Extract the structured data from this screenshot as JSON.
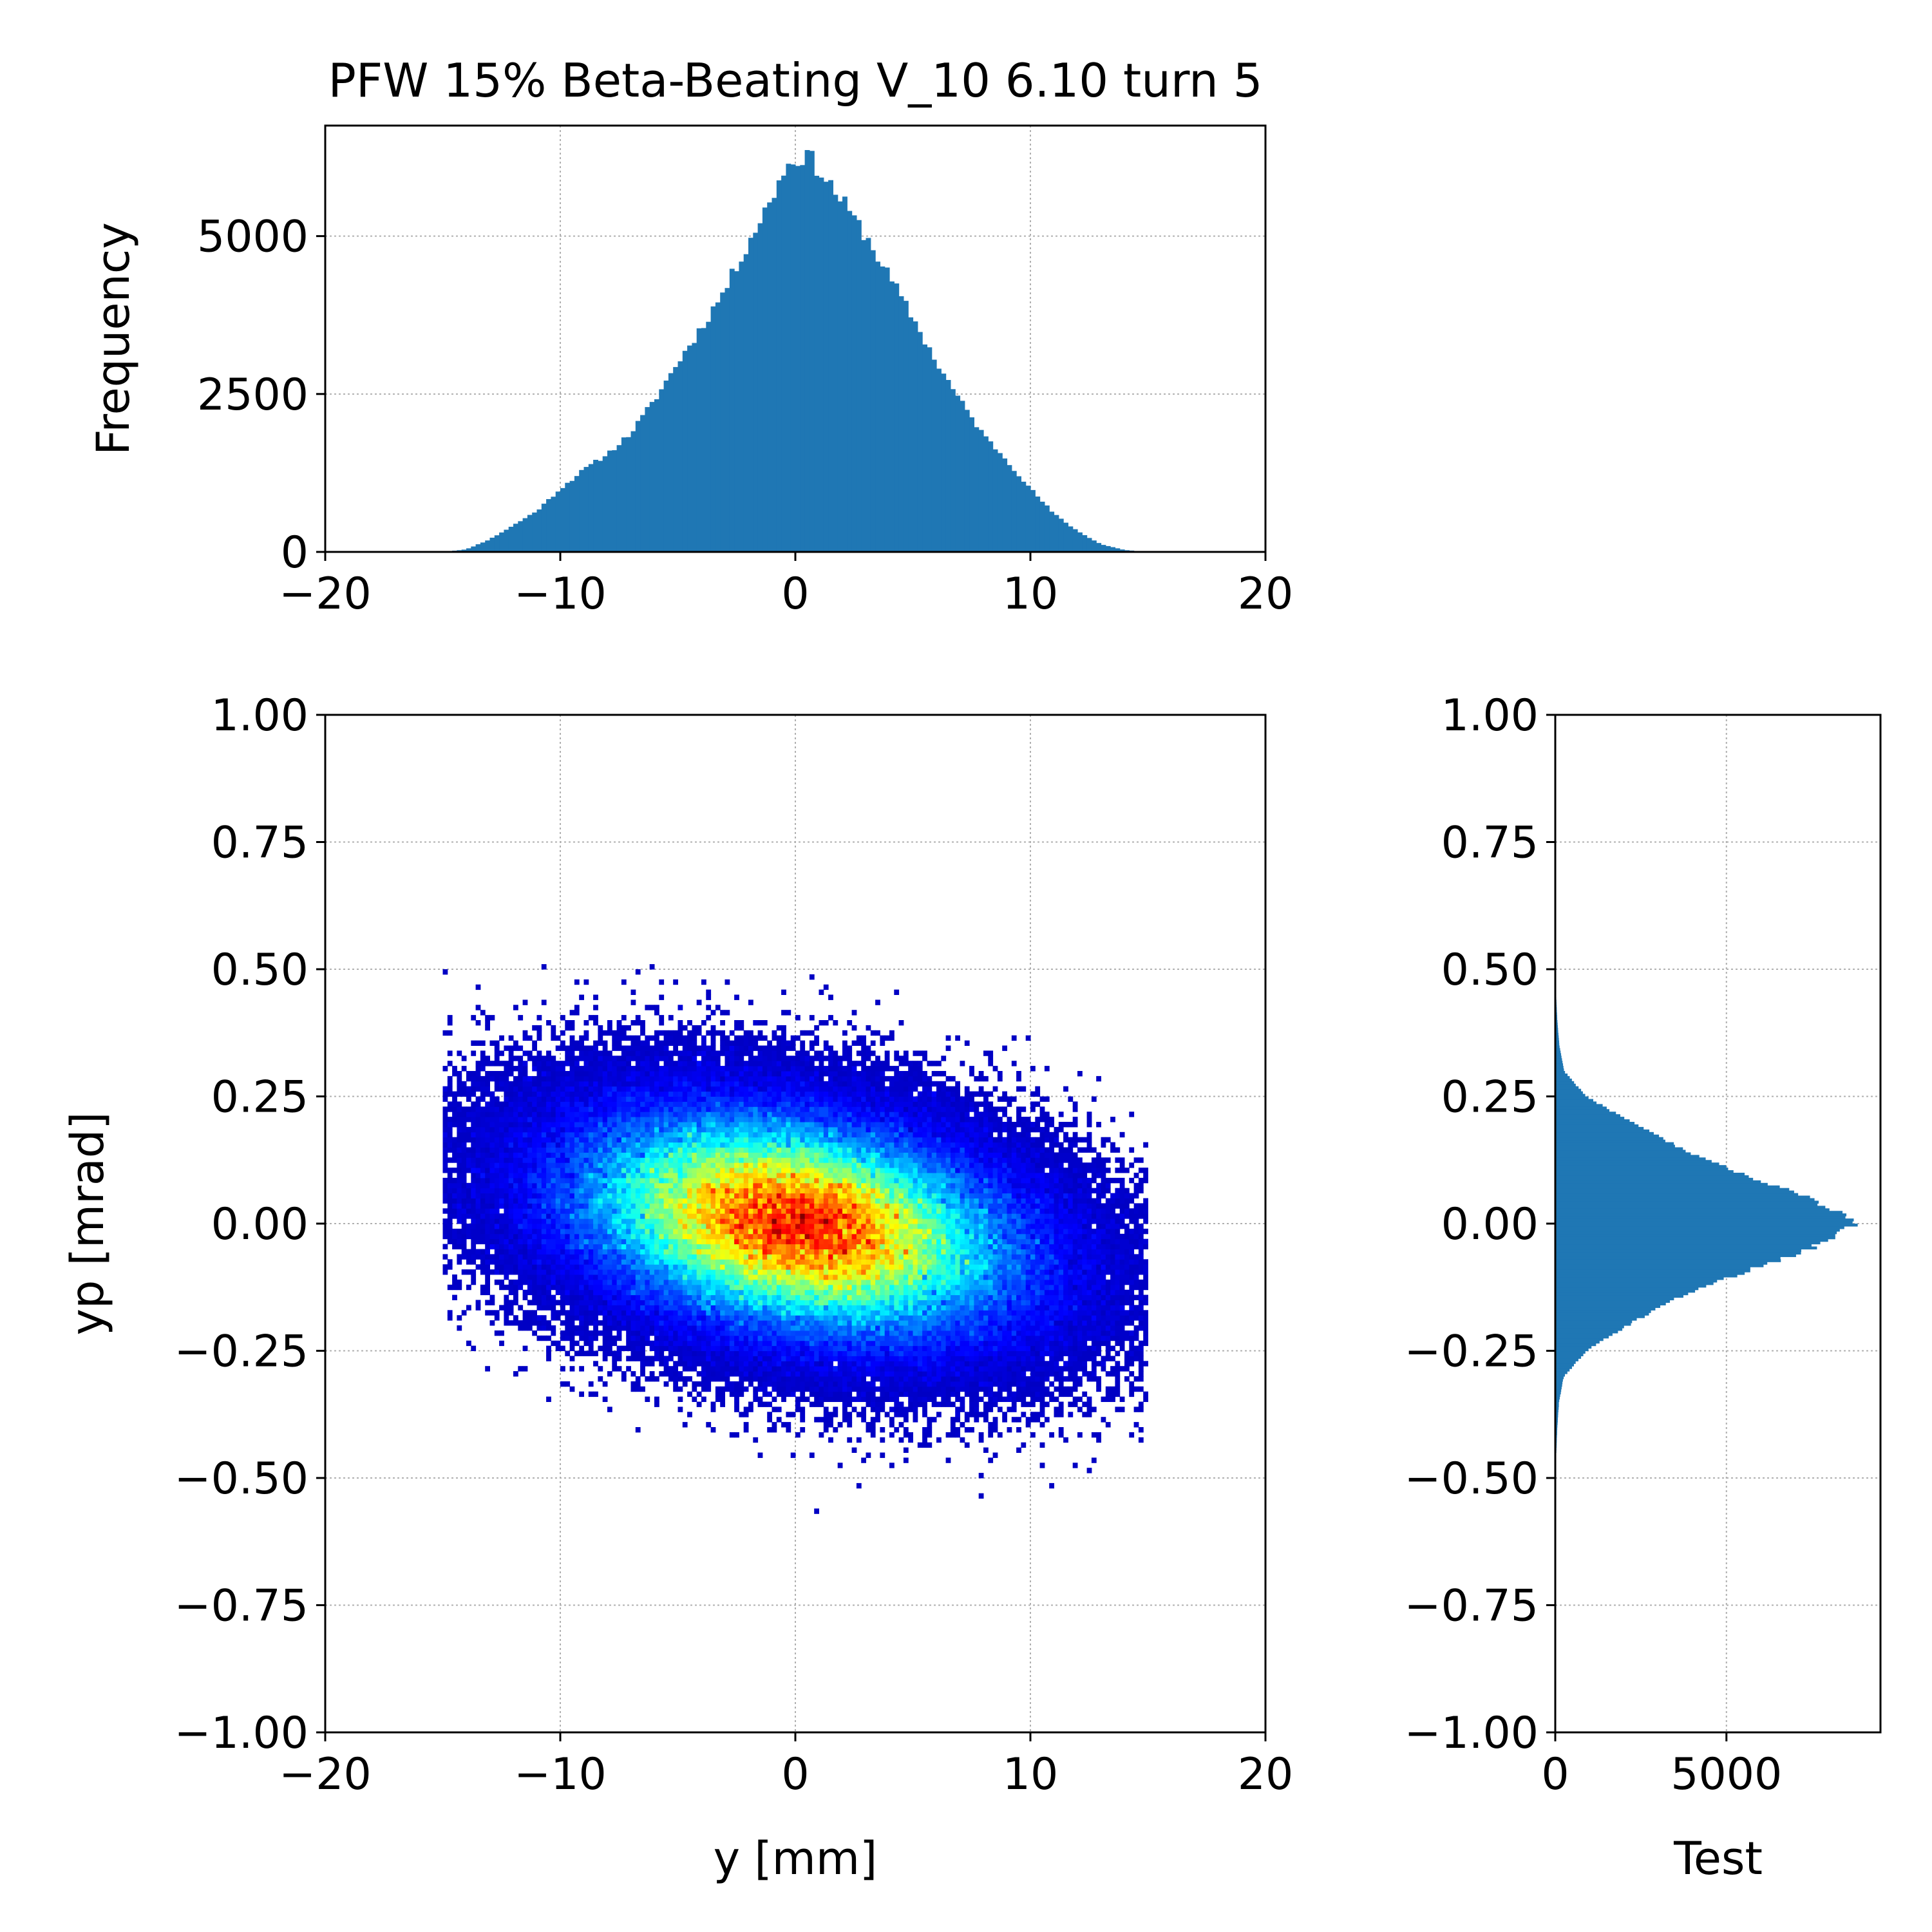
{
  "figure_title": "PFW 15% Beta-Beating V_10 6.10 turn 5",
  "colors": {
    "hist_fill": "#1f77b4",
    "axis": "#000000",
    "grid": "#b0b0b0",
    "background": "#ffffff"
  },
  "chart_data": [
    {
      "id": "top-histogram",
      "type": "bar",
      "title": "PFW 15% Beta-Beating V_10 6.10 turn 5",
      "xlabel": "",
      "ylabel": "Frequency",
      "xlim": [
        -20,
        20
      ],
      "ylim": [
        0,
        6750
      ],
      "xticks": [
        -20,
        -10,
        0,
        10,
        20
      ],
      "xtick_labels": [
        "−20",
        "−10",
        "0",
        "10",
        "20"
      ],
      "yticks": [
        0,
        2500,
        5000
      ],
      "ytick_labels": [
        "0",
        "2500",
        "5000"
      ],
      "grid": true,
      "bin_width": 0.2,
      "profile_points": [
        [
          -15.0,
          0
        ],
        [
          -14.0,
          40
        ],
        [
          -13.0,
          200
        ],
        [
          -12.0,
          420
        ],
        [
          -11.0,
          650
        ],
        [
          -10.0,
          1000
        ],
        [
          -9.0,
          1300
        ],
        [
          -8.0,
          1550
        ],
        [
          -7.0,
          1880
        ],
        [
          -6.0,
          2400
        ],
        [
          -5.0,
          3000
        ],
        [
          -4.0,
          3550
        ],
        [
          -3.0,
          4150
        ],
        [
          -2.0,
          4900
        ],
        [
          -1.0,
          5600
        ],
        [
          -0.5,
          6050
        ],
        [
          0.0,
          6200
        ],
        [
          0.5,
          6300
        ],
        [
          1.0,
          6050
        ],
        [
          2.0,
          5550
        ],
        [
          3.0,
          5000
        ],
        [
          4.0,
          4350
        ],
        [
          5.0,
          3700
        ],
        [
          6.0,
          3000
        ],
        [
          7.0,
          2400
        ],
        [
          8.0,
          1850
        ],
        [
          9.0,
          1450
        ],
        [
          10.0,
          1000
        ],
        [
          11.0,
          600
        ],
        [
          12.0,
          330
        ],
        [
          13.0,
          120
        ],
        [
          14.0,
          30
        ],
        [
          15.0,
          0
        ]
      ]
    },
    {
      "id": "phase-space-heatmap",
      "type": "heatmap",
      "title": "",
      "xlabel": "y [mm]",
      "ylabel": "yp [mrad]",
      "xlim": [
        -20,
        20
      ],
      "ylim": [
        -1.0,
        1.0
      ],
      "xticks": [
        -20,
        -10,
        0,
        10,
        20
      ],
      "xtick_labels": [
        "−20",
        "−10",
        "0",
        "10",
        "20"
      ],
      "yticks": [
        1.0,
        0.75,
        0.5,
        0.25,
        0.0,
        -0.25,
        -0.5,
        -0.75,
        -1.0
      ],
      "ytick_labels": [
        "1.00",
        "0.75",
        "0.50",
        "0.25",
        "0.00",
        "−0.25",
        "−0.50",
        "−0.75",
        "−1.00"
      ],
      "grid": true,
      "colormap": "jet",
      "distribution": {
        "center_y_mm": 0.0,
        "center_yp_mrad": 0.0,
        "sigma_y_mm": 5.2,
        "sigma_yp_mrad": 0.12,
        "correlation": -0.3,
        "extent_y_mm": [
          -15.0,
          15.0
        ],
        "extent_yp_mrad": [
          -0.62,
          0.61
        ]
      }
    },
    {
      "id": "right-histogram",
      "type": "bar",
      "orientation": "horizontal",
      "title": "",
      "xlabel": "Test",
      "ylabel": "",
      "xlim": [
        0,
        9500
      ],
      "ylim": [
        -1.0,
        1.0
      ],
      "xticks": [
        0,
        5000
      ],
      "xtick_labels": [
        "0",
        "5000"
      ],
      "yticks": [
        1.0,
        0.75,
        0.5,
        0.25,
        0.0,
        -0.25,
        -0.5,
        -0.75,
        -1.0
      ],
      "ytick_labels": [
        "1.00",
        "0.75",
        "0.50",
        "0.25",
        "0.00",
        "−0.25",
        "−0.50",
        "−0.75",
        "−1.00"
      ],
      "grid": true,
      "bin_width": 0.005,
      "profile_points": [
        [
          -0.5,
          0
        ],
        [
          -0.45,
          30
        ],
        [
          -0.4,
          60
        ],
        [
          -0.35,
          110
        ],
        [
          -0.3,
          250
        ],
        [
          -0.25,
          900
        ],
        [
          -0.2,
          2100
        ],
        [
          -0.15,
          3400
        ],
        [
          -0.1,
          5300
        ],
        [
          -0.05,
          7400
        ],
        [
          0.0,
          8800
        ],
        [
          0.05,
          7500
        ],
        [
          0.1,
          5400
        ],
        [
          0.15,
          3600
        ],
        [
          0.2,
          2200
        ],
        [
          0.25,
          900
        ],
        [
          0.3,
          260
        ],
        [
          0.35,
          120
        ],
        [
          0.4,
          60
        ],
        [
          0.45,
          25
        ],
        [
          0.5,
          0
        ]
      ]
    }
  ]
}
